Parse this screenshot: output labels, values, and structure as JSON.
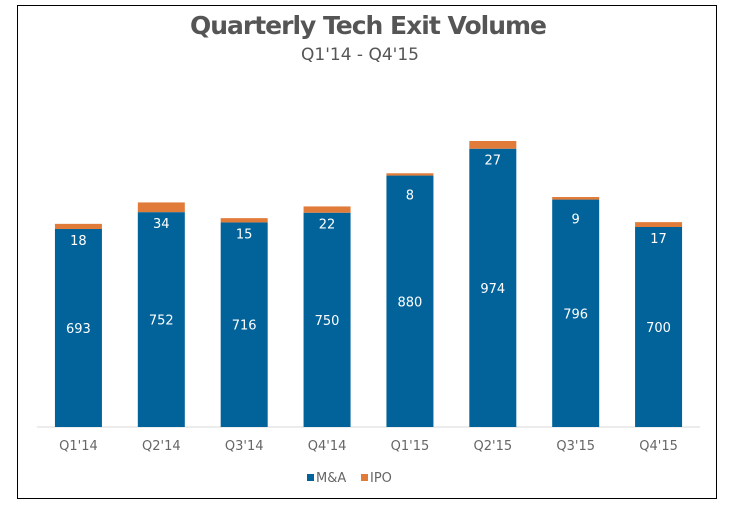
{
  "chart_data": {
    "type": "bar",
    "stacked": true,
    "title": "Quarterly Tech Exit Volume",
    "subtitle": "Q1'14 - Q4'15",
    "categories": [
      "Q1'14",
      "Q2'14",
      "Q3'14",
      "Q4'14",
      "Q1'15",
      "Q2'15",
      "Q3'15",
      "Q4'15"
    ],
    "series": [
      {
        "name": "M&A",
        "color": "#02639b",
        "values": [
          693,
          752,
          716,
          750,
          880,
          974,
          796,
          700
        ]
      },
      {
        "name": "IPO",
        "color": "#e07b39",
        "values": [
          18,
          34,
          15,
          22,
          8,
          27,
          9,
          17
        ]
      }
    ],
    "xlabel": "",
    "ylabel": "",
    "ylim": [
      0,
      1001
    ],
    "grid": false,
    "legend": "bottom"
  }
}
